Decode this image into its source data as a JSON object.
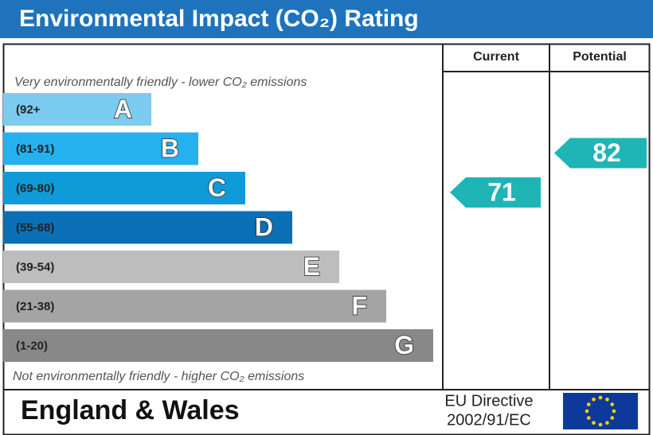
{
  "header": {
    "title": "Environmental Impact (CO₂) Rating"
  },
  "columns": {
    "current": "Current",
    "potential": "Potential"
  },
  "notes": {
    "top": "Very environmentally friendly - lower CO₂ emissions",
    "bottom": "Not environmentally friendly - higher CO₂ emissions"
  },
  "bands": [
    {
      "range": "(92+",
      "letter": "A",
      "color": "#7ccbf0"
    },
    {
      "range": "(81-91)",
      "letter": "B",
      "color": "#25b1ee"
    },
    {
      "range": "(69-80)",
      "letter": "C",
      "color": "#0e9bd8"
    },
    {
      "range": "(55-68)",
      "letter": "D",
      "color": "#0b6fb6"
    },
    {
      "range": "(39-54)",
      "letter": "E",
      "color": "#bdbdbd"
    },
    {
      "range": "(21-38)",
      "letter": "F",
      "color": "#a4a4a4"
    },
    {
      "range": "(1-20)",
      "letter": "G",
      "color": "#888888"
    }
  ],
  "ratings": {
    "current": 71,
    "potential": 82,
    "color": "#1fb5b6"
  },
  "footer": {
    "region": "England & Wales",
    "directive_line1": "EU Directive",
    "directive_line2": "2002/91/EC"
  }
}
